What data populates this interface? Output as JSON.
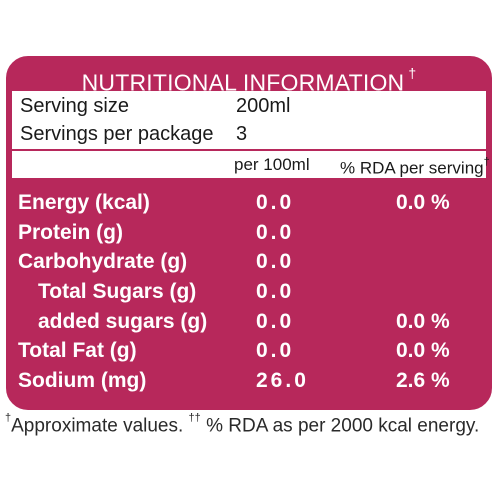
{
  "panel": {
    "title": "NUTRITIONAL INFORMATION",
    "title_mark": "†",
    "accent_color": "#b7285b"
  },
  "serving": [
    {
      "label": "Serving size",
      "value": "200ml"
    },
    {
      "label": "Servings per package",
      "value": "3"
    }
  ],
  "columns": {
    "per100": "per 100ml",
    "rda": "% RDA per serving",
    "rda_mark": "††"
  },
  "nutrients": [
    {
      "label": "Energy (kcal)",
      "per100": "0.0",
      "rda": "0.0 %",
      "indent": false
    },
    {
      "label": "Protein (g)",
      "per100": "0.0",
      "rda": "",
      "indent": false
    },
    {
      "label": "Carbohydrate (g)",
      "per100": "0.0",
      "rda": "",
      "indent": false
    },
    {
      "label": "Total Sugars (g)",
      "per100": "0.0",
      "rda": "",
      "indent": true
    },
    {
      "label": "added sugars (g)",
      "per100": "0.0",
      "rda": "0.0 %",
      "indent": true
    },
    {
      "label": "Total Fat (g)",
      "per100": "0.0",
      "rda": "0.0 %",
      "indent": false
    },
    {
      "label": "Sodium (mg)",
      "per100": "26.0",
      "rda": "2.6 %",
      "indent": false
    }
  ],
  "footnote": {
    "mark1": "†",
    "text1": "Approximate values. ",
    "mark2": "††",
    "text2": " % RDA as per 2000 kcal energy."
  }
}
